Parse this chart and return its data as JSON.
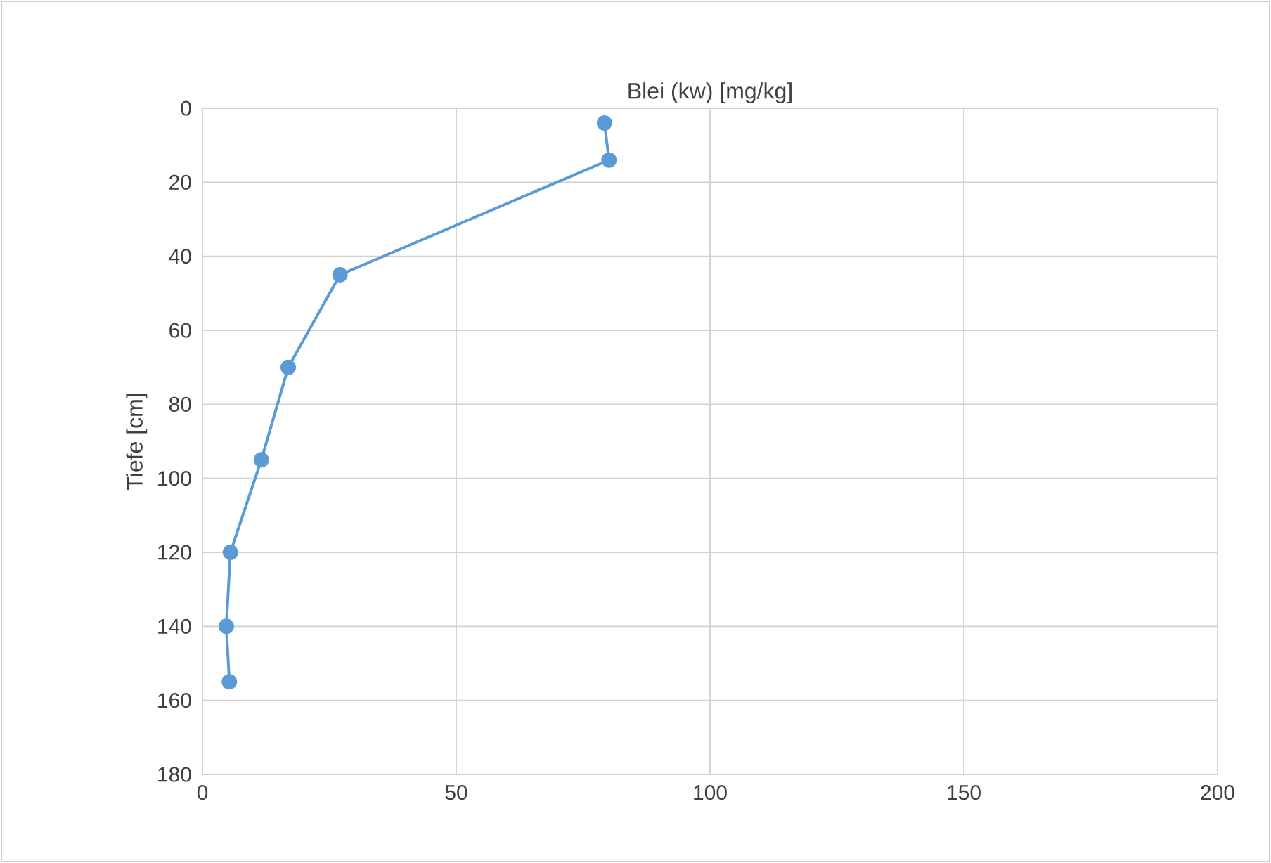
{
  "chart_data": {
    "type": "line",
    "title": "Blei (kw) [mg/kg]",
    "ylabel": "Tiefe [cm]",
    "x": [
      79.2,
      80.1,
      27.1,
      16.9,
      11.6,
      5.5,
      4.7,
      5.3
    ],
    "series": [
      {
        "color": "#5b9bd5",
        "values": [
          4,
          14,
          45,
          70,
          95,
          120,
          140,
          155
        ]
      }
    ],
    "xlim": [
      0,
      200
    ],
    "xticks": [
      0,
      50,
      100,
      150,
      200
    ],
    "ylim": [
      180,
      0
    ],
    "yticks": [
      0,
      20,
      40,
      60,
      80,
      100,
      120,
      140,
      160,
      180
    ],
    "grid": true,
    "marker": "circle"
  }
}
